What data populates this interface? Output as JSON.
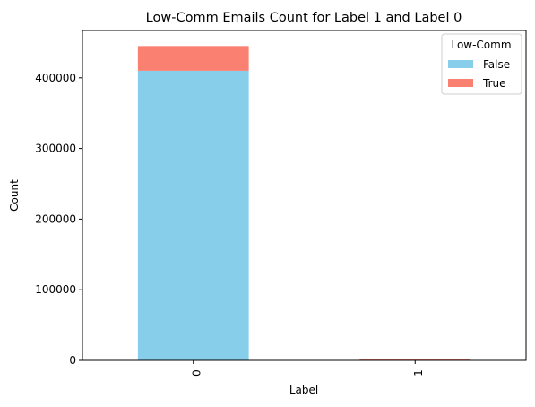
{
  "chart_data": {
    "type": "bar",
    "stacked": true,
    "title": "Low-Comm Emails Count for Label 1 and Label 0",
    "xlabel": "Label",
    "ylabel": "Count",
    "categories": [
      "0",
      "1"
    ],
    "ylim": [
      0,
      467000
    ],
    "yticks": [
      0,
      100000,
      200000,
      300000,
      400000
    ],
    "ytick_labels": [
      "0",
      "100000",
      "200000",
      "300000",
      "400000"
    ],
    "grid": false,
    "legend": {
      "title": "Low-Comm",
      "placement": "top-right"
    },
    "series": [
      {
        "name": "False",
        "color": "#87ceeb",
        "values": [
          410000,
          500
        ]
      },
      {
        "name": "True",
        "color": "#fa8072",
        "values": [
          35000,
          2000
        ]
      }
    ]
  }
}
